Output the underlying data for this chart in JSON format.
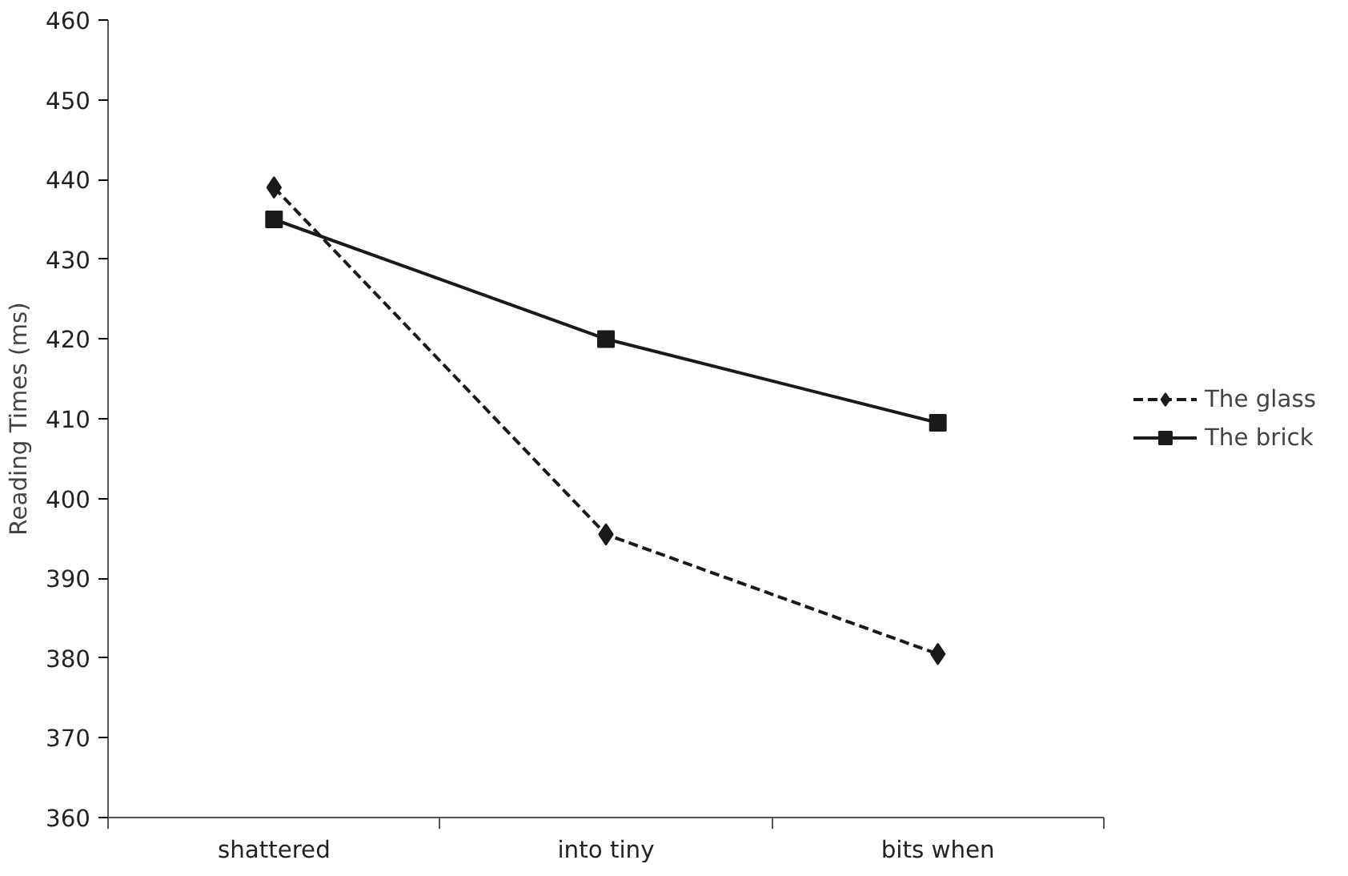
{
  "chart_data": {
    "type": "line",
    "ylabel": "Reading Times (ms)",
    "categories": [
      "shattered",
      "into tiny",
      "bits when"
    ],
    "series": [
      {
        "name": "The glass",
        "color": "#1a1a1a",
        "values": [
          439,
          395.5,
          380.5
        ],
        "marker": "diamond",
        "line_style": "dashed"
      },
      {
        "name": "The brick",
        "color": "#1a1a1a",
        "values": [
          435,
          420,
          409.5
        ],
        "marker": "square",
        "line_style": "solid"
      }
    ],
    "ylim": [
      360,
      460
    ],
    "yticks": [
      360,
      370,
      380,
      390,
      400,
      410,
      420,
      430,
      440,
      450,
      460
    ],
    "grid": false,
    "legend": "right"
  }
}
